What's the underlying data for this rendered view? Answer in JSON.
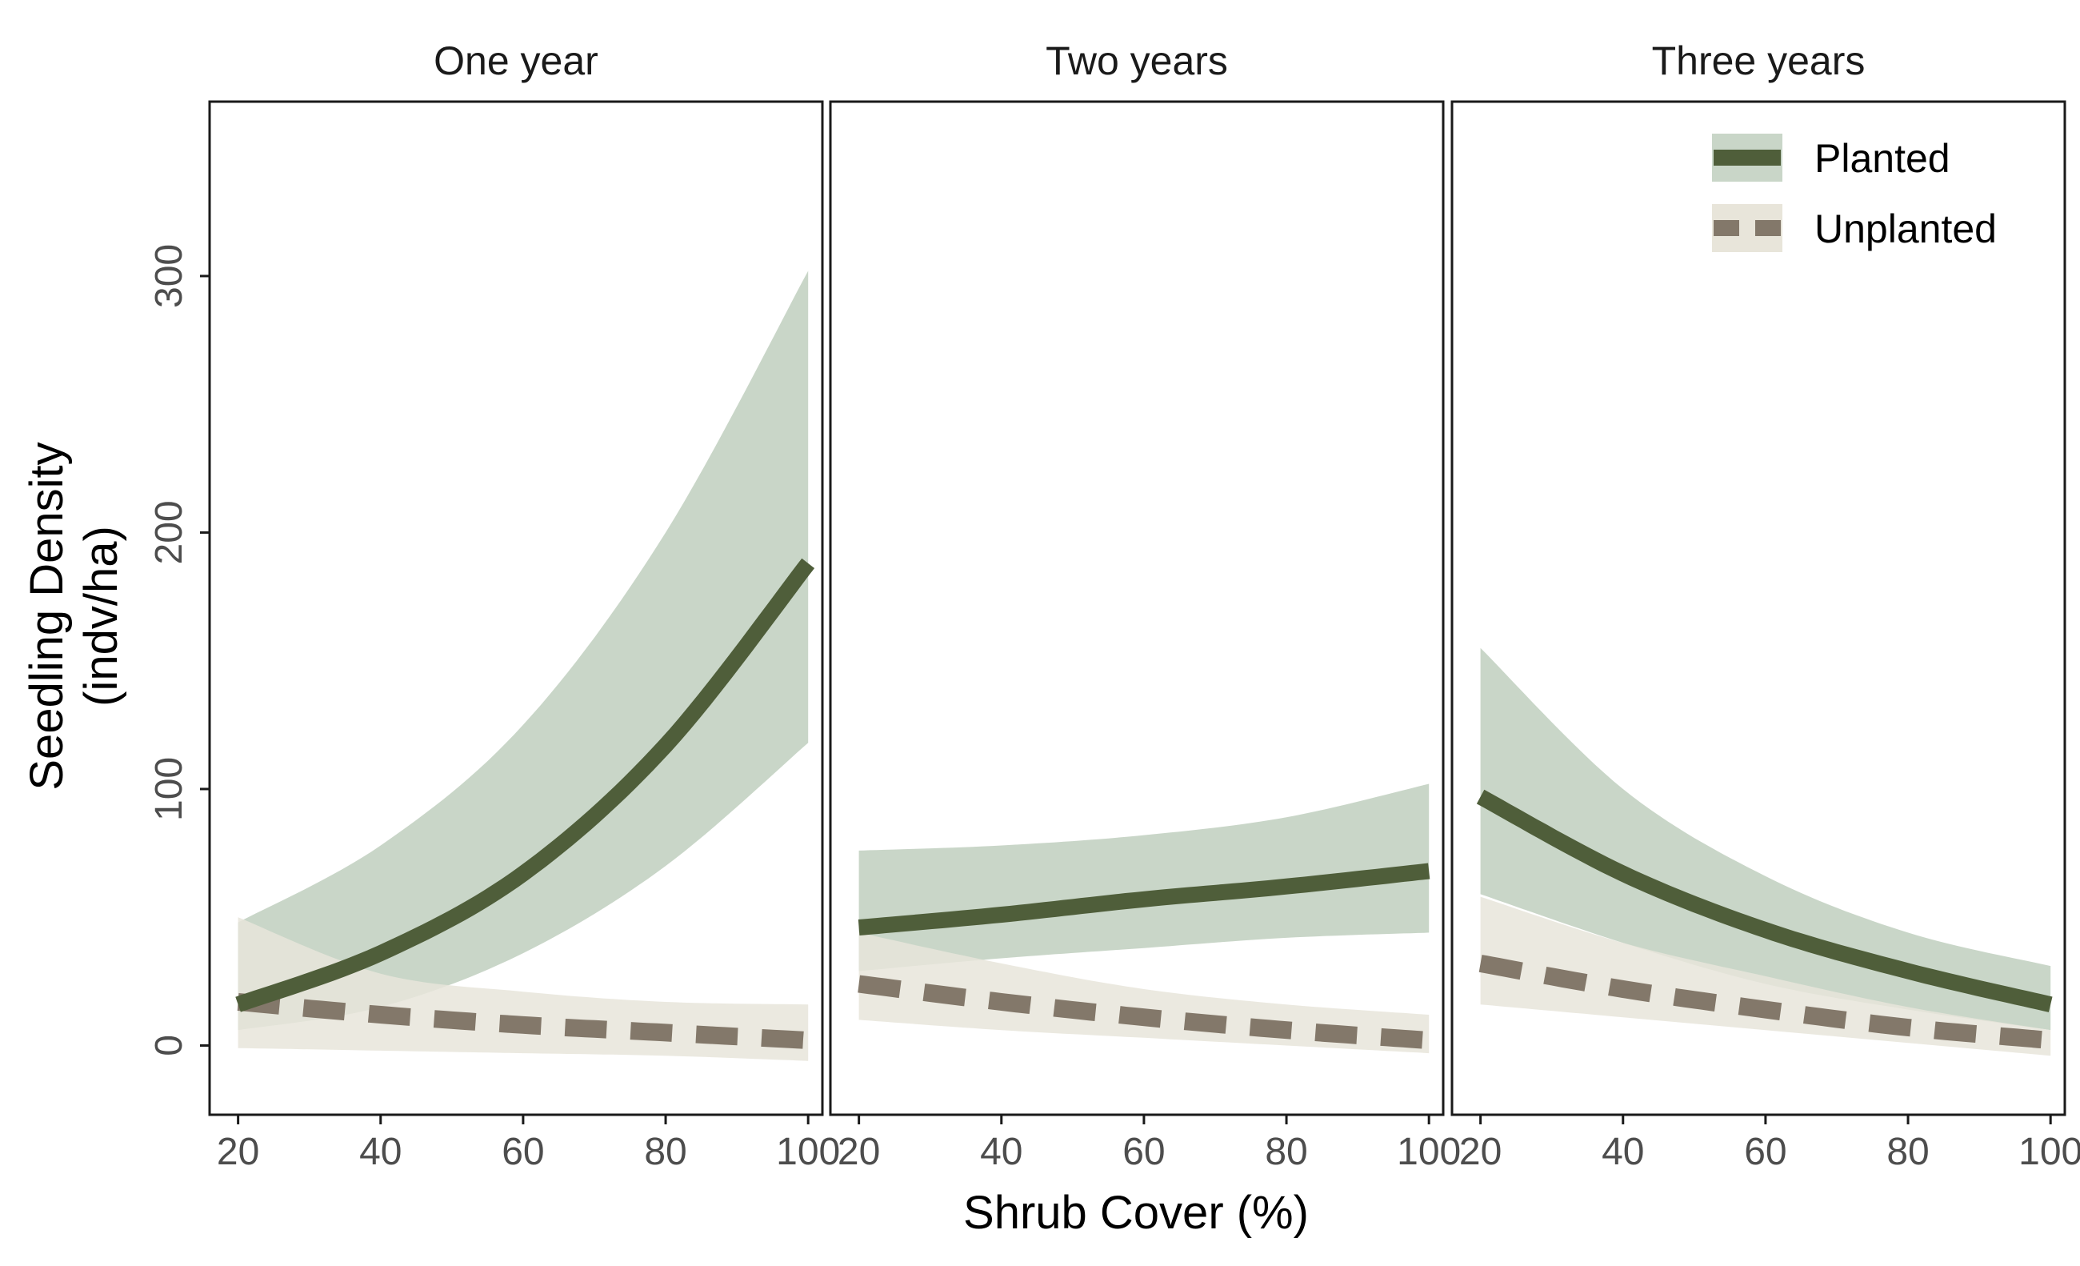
{
  "colors": {
    "planted_line": "#4f5e3a",
    "planted_band": "#c9d6c8",
    "unplanted_line": "#83786a",
    "unplanted_band": "#e8e5da",
    "panel_border": "#1a1a1a",
    "tick_text": "#4d4d4d"
  },
  "chart_data": {
    "type": "line",
    "xlabel": "Shrub Cover (%)",
    "ylabel_line1": "Seedling Density",
    "ylabel_line2": "(indv/ha)",
    "xlim": [
      16,
      102
    ],
    "ylim": [
      -27,
      368
    ],
    "x_ticks": [
      20,
      40,
      60,
      80,
      100
    ],
    "y_ticks": [
      0,
      100,
      200,
      300
    ],
    "x_tick_labels": [
      "20",
      "40",
      "60",
      "80",
      "100"
    ],
    "y_tick_labels": [
      "0",
      "100",
      "200",
      "300"
    ],
    "legend": {
      "position": "top-right",
      "items": [
        {
          "label": "Planted",
          "style": "solid"
        },
        {
          "label": "Unplanted",
          "style": "dashed"
        }
      ]
    },
    "panels": [
      {
        "title": "One year",
        "series": [
          {
            "name": "Planted",
            "x": [
              20,
              40,
              60,
              80,
              100
            ],
            "y": [
              16,
              36,
              67,
              117,
              188
            ],
            "lower": [
              6,
              15,
              36,
              70,
              118
            ],
            "upper": [
              48,
              78,
              125,
              200,
              302
            ]
          },
          {
            "name": "Unplanted",
            "x": [
              20,
              40,
              60,
              80,
              100
            ],
            "y": [
              17,
              12,
              8,
              5,
              2
            ],
            "lower": [
              -1,
              -2,
              -3,
              -4,
              -6
            ],
            "upper": [
              50,
              28,
              21,
              17,
              16
            ]
          }
        ]
      },
      {
        "title": "Two years",
        "series": [
          {
            "name": "Planted",
            "x": [
              20,
              40,
              60,
              80,
              100
            ],
            "y": [
              46,
              51,
              57,
              62,
              68
            ],
            "lower": [
              29,
              34,
              38,
              42,
              44
            ],
            "upper": [
              76,
              78,
              82,
              89,
              102
            ]
          },
          {
            "name": "Unplanted",
            "x": [
              20,
              40,
              60,
              80,
              100
            ],
            "y": [
              24,
              17,
              11,
              6,
              2
            ],
            "lower": [
              10,
              6,
              3,
              0,
              -3
            ],
            "upper": [
              44,
              32,
              22,
              16,
              12
            ]
          }
        ]
      },
      {
        "title": "Three years",
        "series": [
          {
            "name": "Planted",
            "x": [
              20,
              40,
              60,
              80,
              100
            ],
            "y": [
              97,
              67,
              45,
              29,
              16
            ],
            "lower": [
              59,
              40,
              24,
              14,
              6
            ],
            "upper": [
              155,
              100,
              66,
              44,
              31
            ]
          },
          {
            "name": "Unplanted",
            "x": [
              20,
              40,
              60,
              80,
              100
            ],
            "y": [
              32,
              22,
              14,
              7,
              2
            ],
            "lower": [
              16,
              11,
              6,
              1,
              -4
            ],
            "upper": [
              58,
              40,
              27,
              15,
              6
            ]
          }
        ]
      }
    ]
  }
}
